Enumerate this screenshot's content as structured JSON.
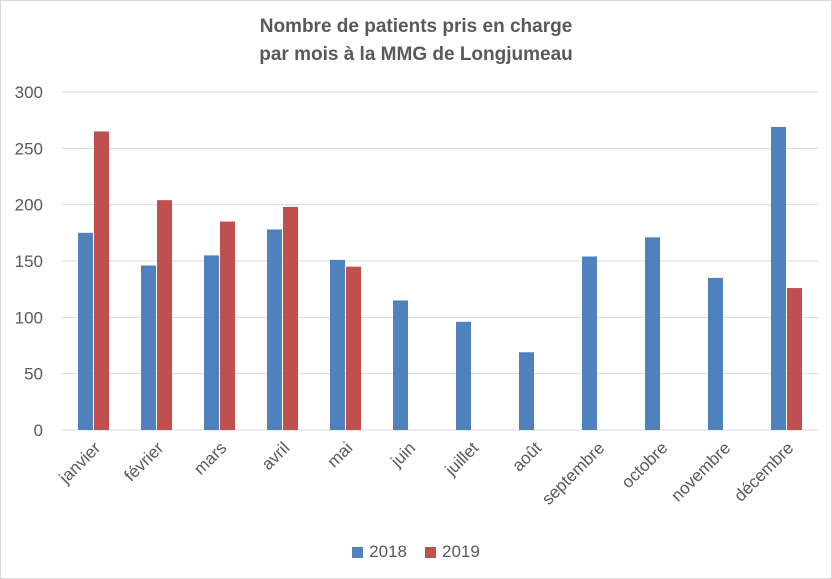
{
  "chart_data": {
    "type": "bar",
    "title_lines": [
      "Nombre de patients pris en charge",
      "par mois à la MMG de Longjumeau"
    ],
    "categories": [
      "janvier",
      "février",
      "mars",
      "avril",
      "mai",
      "juin",
      "juillet",
      "août",
      "septembre",
      "octobre",
      "novembre",
      "décembre"
    ],
    "series": [
      {
        "name": "2018",
        "color": "#4f81bd",
        "values": [
          175,
          146,
          155,
          178,
          151,
          115,
          96,
          69,
          154,
          171,
          135,
          269
        ]
      },
      {
        "name": "2019",
        "color": "#c0504d",
        "values": [
          265,
          204,
          185,
          198,
          145,
          null,
          null,
          null,
          null,
          null,
          null,
          126
        ]
      }
    ],
    "ylim": [
      0,
      300
    ],
    "yticks": [
      0,
      50,
      100,
      150,
      200,
      250,
      300
    ],
    "grid": true,
    "legend_position": "bottom"
  }
}
